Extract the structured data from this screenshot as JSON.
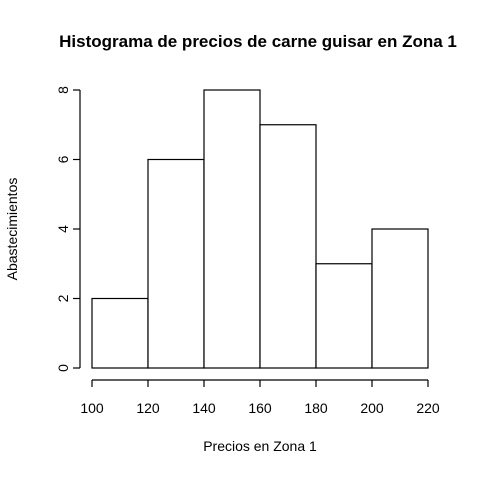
{
  "chart_data": {
    "type": "bar",
    "title": "Histograma de precios de carne guisar en Zona 1",
    "xlabel": "Precios en Zona 1",
    "ylabel": "Abastecimientos",
    "bins": [
      {
        "from": 100,
        "to": 120,
        "count": 2
      },
      {
        "from": 120,
        "to": 140,
        "count": 6
      },
      {
        "from": 140,
        "to": 160,
        "count": 8
      },
      {
        "from": 160,
        "to": 180,
        "count": 7
      },
      {
        "from": 180,
        "to": 200,
        "count": 3
      },
      {
        "from": 200,
        "to": 220,
        "count": 4
      }
    ],
    "x_ticks": [
      100,
      120,
      140,
      160,
      180,
      200,
      220
    ],
    "y_ticks": [
      0,
      2,
      4,
      6,
      8
    ],
    "xlim": [
      100,
      220
    ],
    "ylim": [
      0,
      8
    ],
    "grid": false,
    "bar_fill": "#ffffff",
    "bar_stroke": "#000000"
  }
}
